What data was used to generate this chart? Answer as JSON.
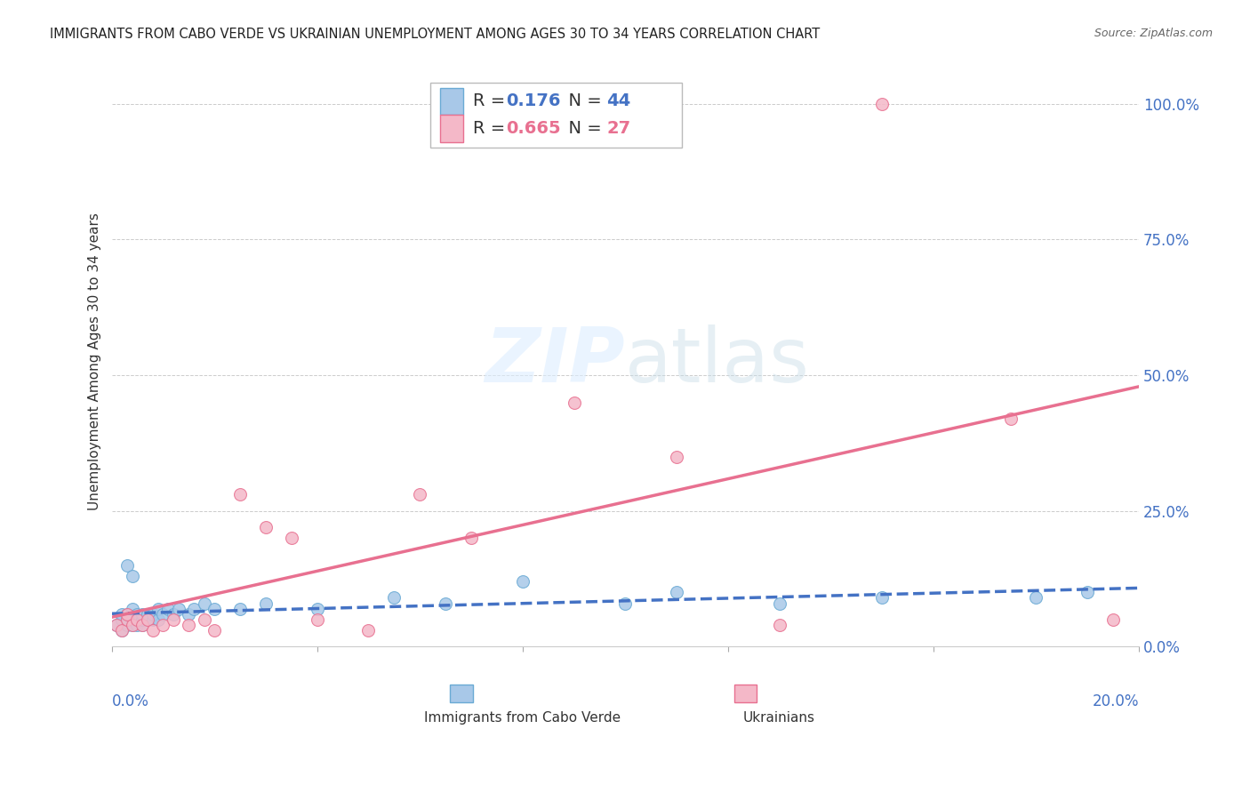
{
  "title": "IMMIGRANTS FROM CABO VERDE VS UKRAINIAN UNEMPLOYMENT AMONG AGES 30 TO 34 YEARS CORRELATION CHART",
  "source": "Source: ZipAtlas.com",
  "ylabel": "Unemployment Among Ages 30 to 34 years",
  "watermark": "ZIPatlas",
  "cabo_verde_color": "#a8c8e8",
  "cabo_verde_edge": "#6aaad4",
  "ukrainian_color": "#f4b8c8",
  "ukrainian_edge": "#e87090",
  "trendline1_color": "#4472c4",
  "trendline2_color": "#e87090",
  "xlim": [
    0.0,
    0.2
  ],
  "ylim": [
    0.0,
    1.05
  ],
  "yticks": [
    0.0,
    0.25,
    0.5,
    0.75,
    1.0
  ],
  "ytick_labels_right": [
    "0.0%",
    "25.0%",
    "50.0%",
    "75.0%",
    "100.0%"
  ],
  "cabo_verde_x": [
    0.001,
    0.002,
    0.002,
    0.002,
    0.003,
    0.003,
    0.003,
    0.004,
    0.004,
    0.004,
    0.005,
    0.005,
    0.005,
    0.006,
    0.006,
    0.006,
    0.007,
    0.007,
    0.008,
    0.008,
    0.009,
    0.009,
    0.01,
    0.011,
    0.012,
    0.013,
    0.015,
    0.016,
    0.018,
    0.02,
    0.025,
    0.03,
    0.04,
    0.055,
    0.065,
    0.08,
    0.1,
    0.11,
    0.13,
    0.15,
    0.003,
    0.004,
    0.18,
    0.19
  ],
  "cabo_verde_y": [
    0.04,
    0.03,
    0.05,
    0.06,
    0.04,
    0.05,
    0.06,
    0.04,
    0.05,
    0.07,
    0.04,
    0.05,
    0.06,
    0.04,
    0.05,
    0.06,
    0.05,
    0.06,
    0.05,
    0.06,
    0.05,
    0.07,
    0.06,
    0.07,
    0.06,
    0.07,
    0.06,
    0.07,
    0.08,
    0.07,
    0.07,
    0.08,
    0.07,
    0.09,
    0.08,
    0.12,
    0.08,
    0.1,
    0.08,
    0.09,
    0.15,
    0.13,
    0.09,
    0.1
  ],
  "ukrainian_x": [
    0.001,
    0.002,
    0.003,
    0.003,
    0.004,
    0.005,
    0.006,
    0.007,
    0.008,
    0.01,
    0.012,
    0.015,
    0.018,
    0.02,
    0.025,
    0.03,
    0.035,
    0.04,
    0.05,
    0.06,
    0.07,
    0.09,
    0.11,
    0.13,
    0.15,
    0.175,
    0.195
  ],
  "ukrainian_y": [
    0.04,
    0.03,
    0.05,
    0.06,
    0.04,
    0.05,
    0.04,
    0.05,
    0.03,
    0.04,
    0.05,
    0.04,
    0.05,
    0.03,
    0.28,
    0.22,
    0.2,
    0.05,
    0.03,
    0.28,
    0.2,
    0.45,
    0.35,
    0.04,
    1.0,
    0.42,
    0.05
  ],
  "trendline1_xstart": 0.0,
  "trendline1_xend": 0.2,
  "trendline2_xstart": 0.0,
  "trendline2_xend": 0.2
}
